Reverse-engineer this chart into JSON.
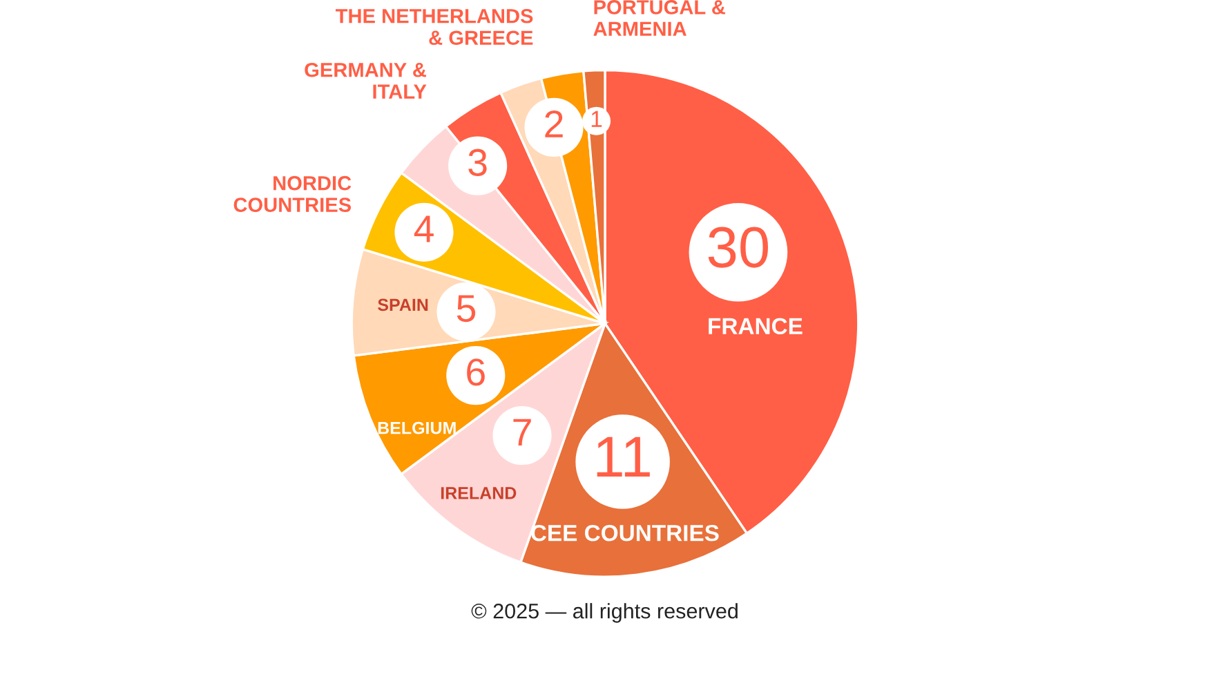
{
  "chart_data": {
    "type": "pie",
    "categories": [
      "FRANCE",
      "CEE COUNTRIES",
      "IRELAND",
      "BELGIUM",
      "SPAIN",
      "NORDIC\nCOUNTRIES",
      "GERMANY &\nITALY",
      null,
      "THE NETHERLANDS\n& GREECE",
      null,
      "PORTUGAL &\nARMENIA"
    ],
    "values": [
      30,
      11,
      7,
      6,
      5,
      4,
      3,
      3,
      2,
      2,
      1
    ],
    "value_labels": [
      "30",
      "11",
      "7",
      "6",
      "5",
      "4",
      "3",
      null,
      "2",
      null,
      "1"
    ],
    "colors": [
      "#ff5f46",
      "#e8703a",
      "#ffd6d6",
      "#ff9a00",
      "#ffd9b8",
      "#ffc000",
      "#ffd6d6",
      "#ff5f46",
      "#ffd9b8",
      "#ff9a00",
      "#e8703a"
    ],
    "annotations": [
      "© 2025 — all rights reserved"
    ]
  }
}
